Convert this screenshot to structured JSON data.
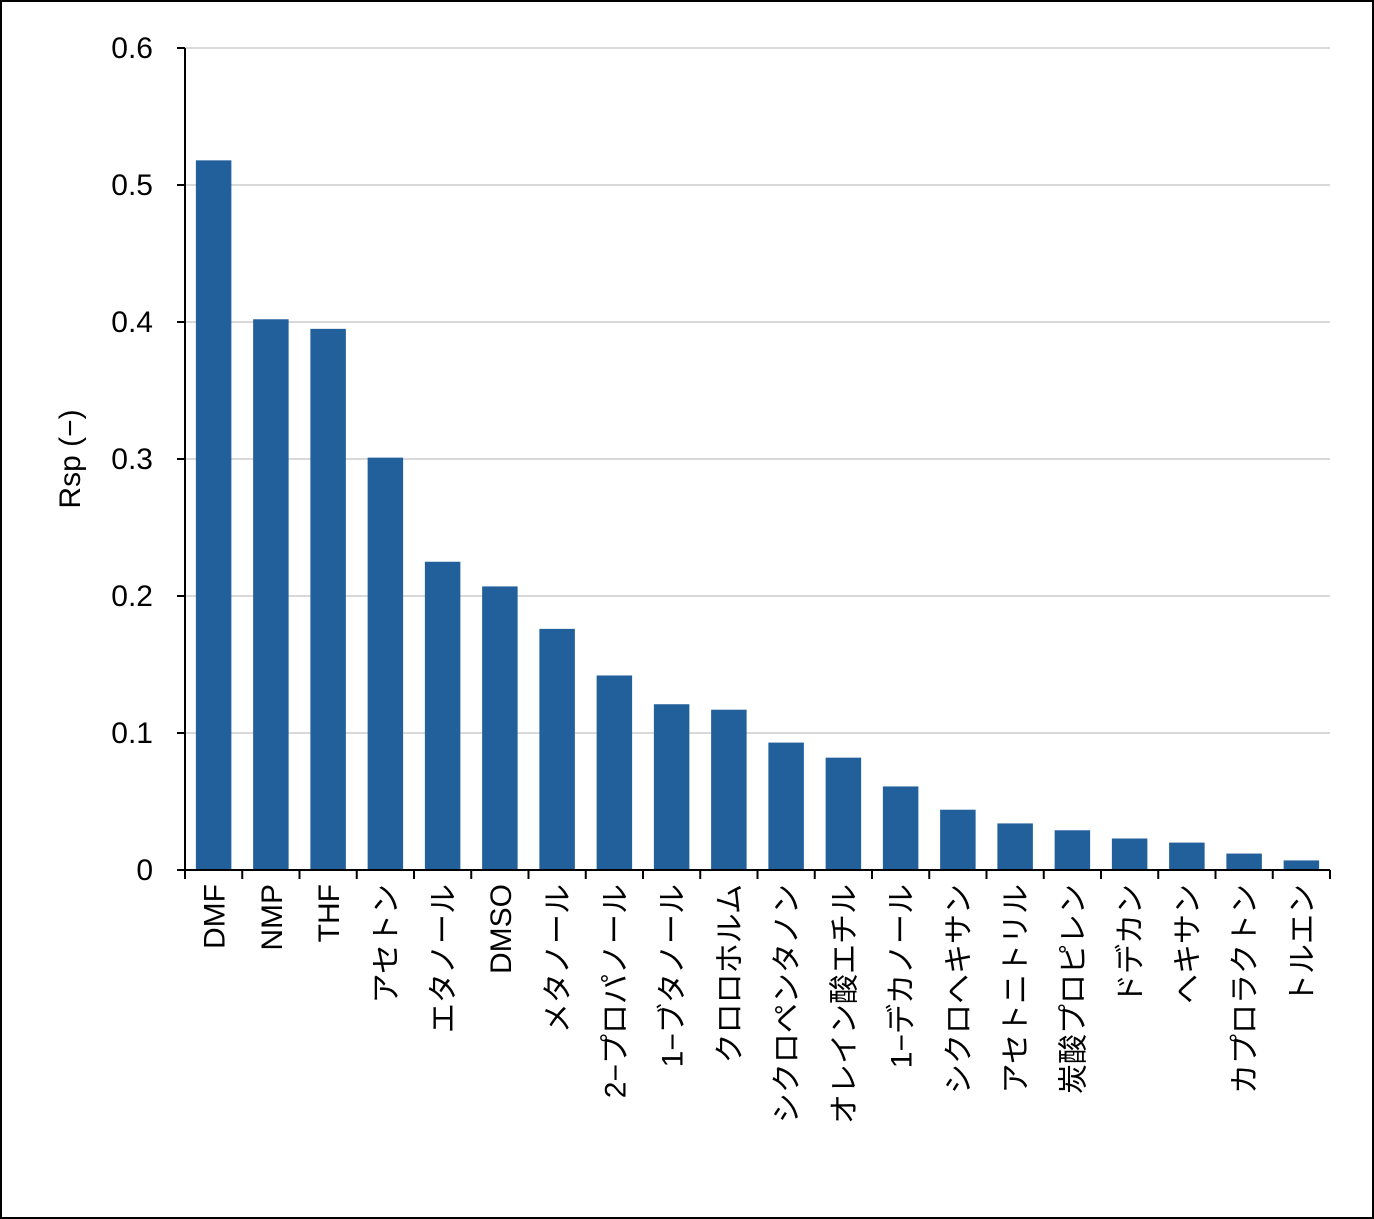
{
  "chart_data": {
    "type": "bar",
    "y_label": "Rsp (−)",
    "categories": [
      "DMF",
      "NMP",
      "THF",
      "アセトン",
      "エタノール",
      "DMSO",
      "メタノール",
      "2−プロパノール",
      "1−ブタノール",
      "クロロホルム",
      "シクロペンタノン",
      "オレイン酸エチル",
      "1−デカノール",
      "シクロヘキサン",
      "アセトニトリル",
      "炭酸プロピレン",
      "ドデカン",
      "ヘキサン",
      "カプロラクトン",
      "トルエン"
    ],
    "values": [
      0.518,
      0.402,
      0.395,
      0.301,
      0.225,
      0.207,
      0.176,
      0.142,
      0.121,
      0.117,
      0.093,
      0.082,
      0.061,
      0.044,
      0.034,
      0.029,
      0.023,
      0.02,
      0.012,
      0.007
    ],
    "color": "#22609c",
    "ylim": [
      0,
      0.6
    ],
    "yticks": [
      0,
      0.1,
      0.2,
      0.3,
      0.4,
      0.5,
      0.6
    ],
    "grid": true
  }
}
